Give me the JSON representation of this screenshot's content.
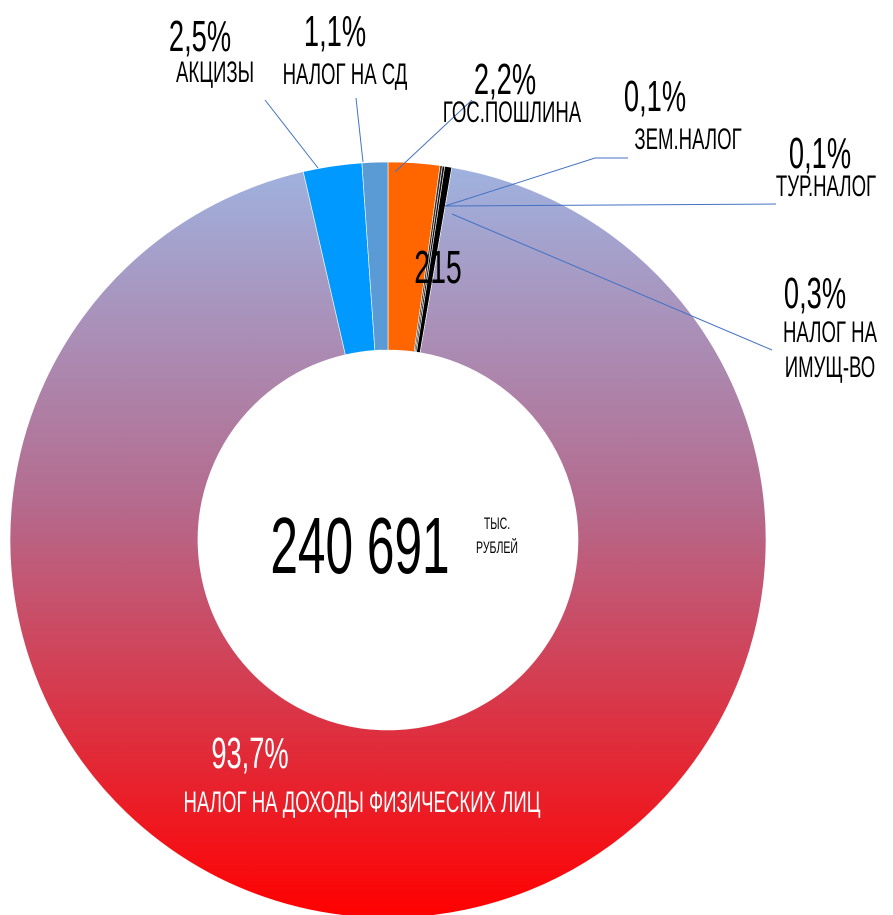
{
  "chart_data": {
    "type": "donut",
    "categories": [
      "ГОС.ПОШЛИНА",
      "ЗЕМ.НАЛОГ",
      "ТУР.НАЛОГ",
      "НАЛОГ НА ИМУЩ-ВО",
      "НАЛОГ НА ДОХОДЫ ФИЗИЧЕСКИХ ЛИЦ",
      "АКЦИЗЫ",
      "НАЛОГ НА СД"
    ],
    "values": [
      2.2,
      0.1,
      0.1,
      0.3,
      93.7,
      2.5,
      1.1
    ],
    "value_labels": [
      "2,2%",
      "0,1%",
      "0,1%",
      "0,3%",
      "93,7%",
      "2,5%",
      "1,1%"
    ],
    "colors": [
      "#ff6600",
      "#333333",
      "#111111",
      "#000000",
      "gradient",
      "#0099ff",
      "#5b9bd5"
    ],
    "center_value": "240 691",
    "center_unit": "ТЫС. РУБЛЕЙ",
    "annotation": "215"
  }
}
